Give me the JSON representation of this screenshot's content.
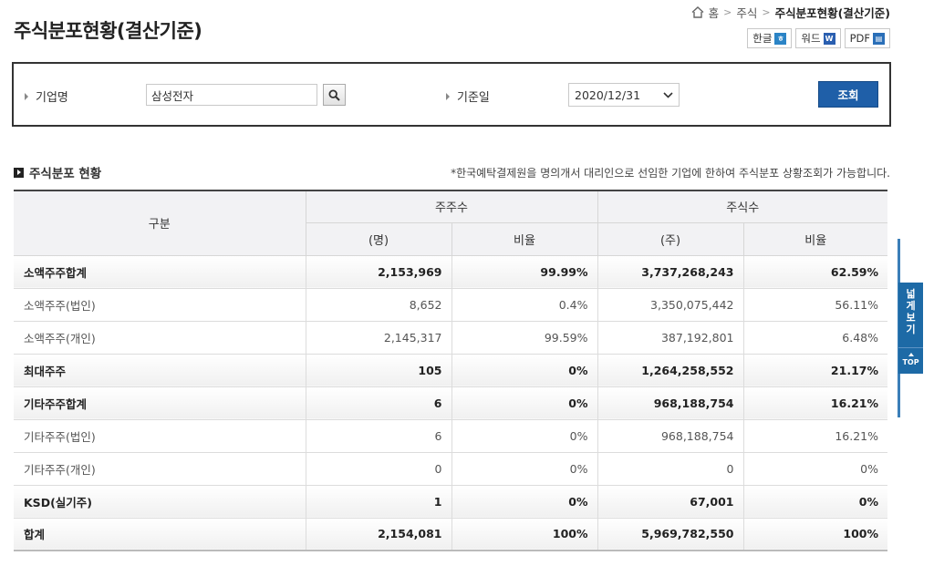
{
  "page": {
    "title": "주식분포현황(결산기준)"
  },
  "breadcrumb": {
    "home": "홈",
    "level1": "주식",
    "current": "주식분포현황(결산기준)"
  },
  "export": {
    "hwp": "한글",
    "word": "워드",
    "pdf": "PDF"
  },
  "search": {
    "company_label": "기업명",
    "company_value": "삼성전자",
    "date_label": "기준일",
    "date_value": "2020/12/31",
    "query_button": "조회"
  },
  "section": {
    "title": "주식분포 현황",
    "notice": "*한국예탁결제원을 명의개서 대리인으로 선임한 기업에 한하여 주식분포 상황조회가 가능합니다."
  },
  "table": {
    "header": {
      "category": "구분",
      "holders": "주주수",
      "shares": "주식수",
      "holders_unit": "(명)",
      "holders_ratio": "비율",
      "shares_unit": "(주)",
      "shares_ratio": "비율"
    },
    "rows": [
      {
        "label": "소액주주합계",
        "holders": "2,153,969",
        "holders_ratio": "99.99%",
        "shares": "3,737,268,243",
        "shares_ratio": "62.59%"
      },
      {
        "label": "소액주주(법인)",
        "holders": "8,652",
        "holders_ratio": "0.4%",
        "shares": "3,350,075,442",
        "shares_ratio": "56.11%"
      },
      {
        "label": "소액주주(개인)",
        "holders": "2,145,317",
        "holders_ratio": "99.59%",
        "shares": "387,192,801",
        "shares_ratio": "6.48%"
      },
      {
        "label": "최대주주",
        "holders": "105",
        "holders_ratio": "0%",
        "shares": "1,264,258,552",
        "shares_ratio": "21.17%"
      },
      {
        "label": "기타주주합계",
        "holders": "6",
        "holders_ratio": "0%",
        "shares": "968,188,754",
        "shares_ratio": "16.21%"
      },
      {
        "label": "기타주주(법인)",
        "holders": "6",
        "holders_ratio": "0%",
        "shares": "968,188,754",
        "shares_ratio": "16.21%"
      },
      {
        "label": "기타주주(개인)",
        "holders": "0",
        "holders_ratio": "0%",
        "shares": "0",
        "shares_ratio": "0%"
      },
      {
        "label": "KSD(실기주)",
        "holders": "1",
        "holders_ratio": "0%",
        "shares": "67,001",
        "shares_ratio": "0%"
      },
      {
        "label": "합계",
        "holders": "2,154,081",
        "holders_ratio": "100%",
        "shares": "5,969,782,550",
        "shares_ratio": "100%"
      }
    ]
  },
  "side": {
    "wide_view": "넓게보기",
    "top": "TOP"
  },
  "icons": [
    "home-icon",
    "search-icon",
    "chevron-down-icon",
    "hwp-file-icon",
    "word-file-icon",
    "pdf-file-icon",
    "section-bullet-icon",
    "arrow-up-icon"
  ],
  "colors": {
    "query_button": "#1f5fa8",
    "side_tab": "#1d6aa6"
  }
}
